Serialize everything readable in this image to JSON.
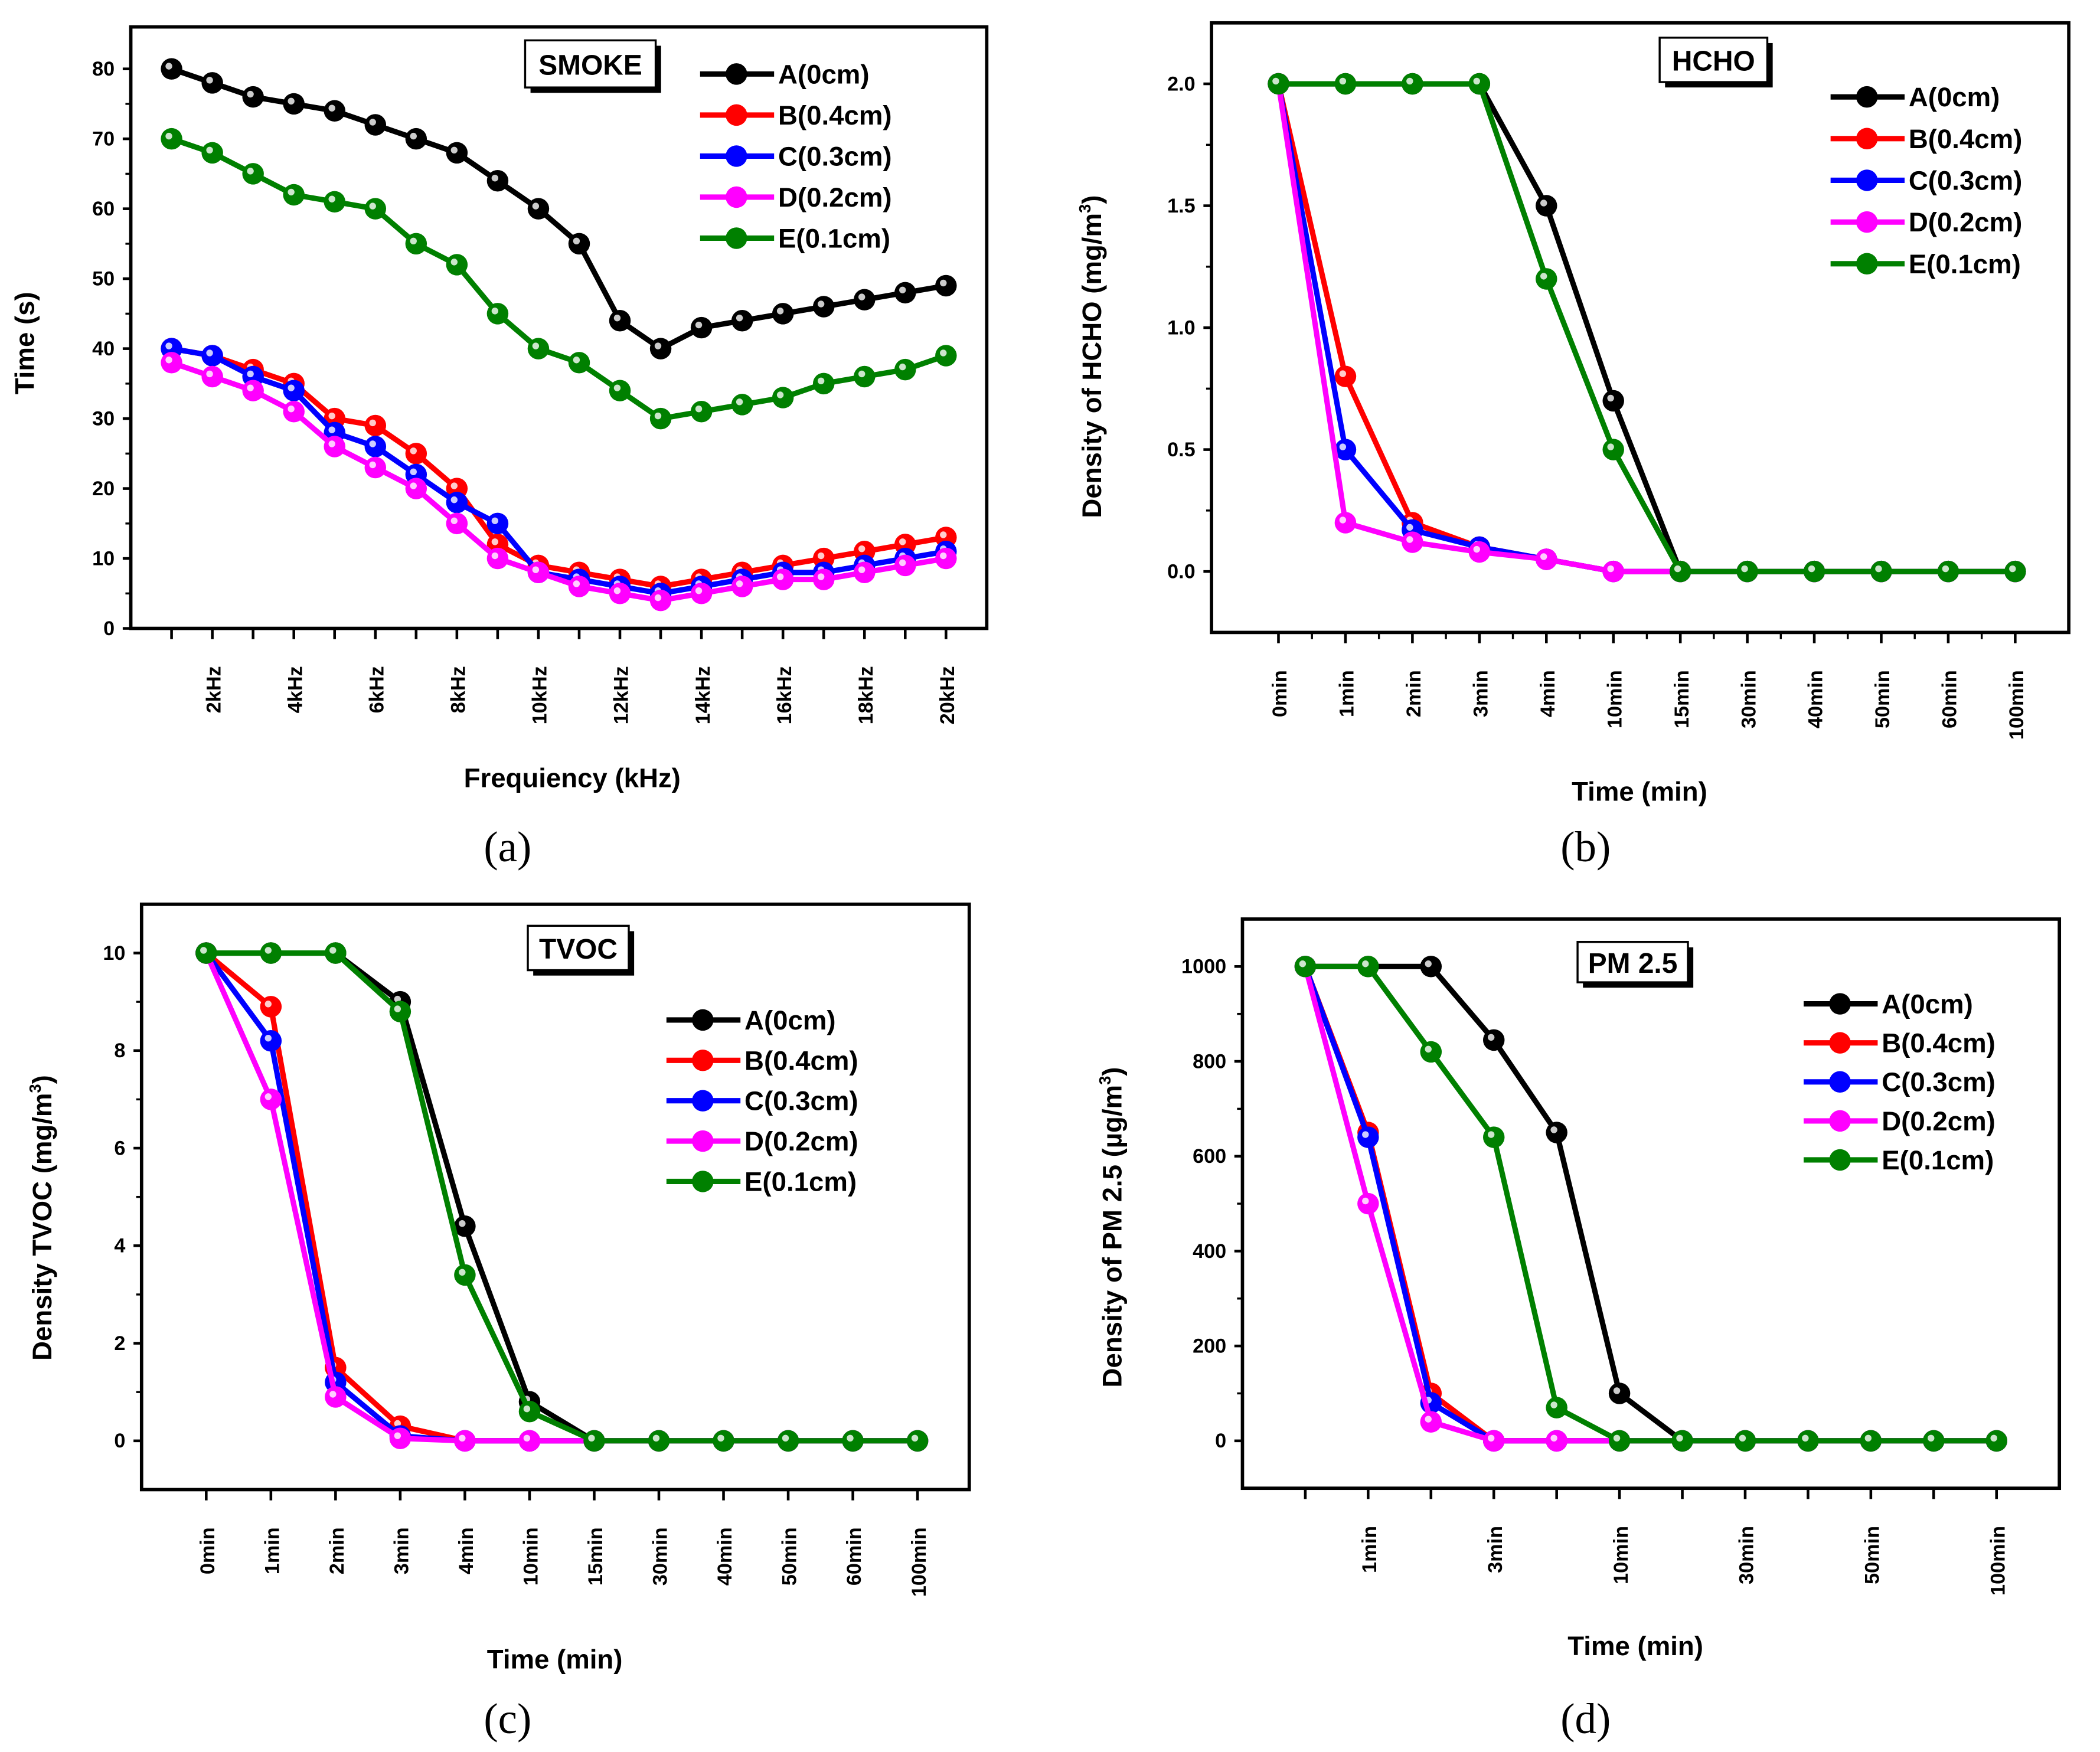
{
  "colors": {
    "A": "#000000",
    "B": "#ff0000",
    "C": "#0000ff",
    "D": "#ff00ff",
    "E": "#008000"
  },
  "chart_data": [
    {
      "panel": "(a)",
      "type": "line",
      "title": "SMOKE",
      "xlabel": "Frequiency (kHz)",
      "ylabel": "Time (s)",
      "ylabel_sup": "",
      "ylabel_end": "",
      "x": [
        1,
        2,
        3,
        4,
        5,
        6,
        7,
        8,
        9,
        10,
        11,
        12,
        13,
        14,
        15,
        16,
        17,
        18,
        19,
        20
      ],
      "xlim": [
        0,
        21
      ],
      "ylim": [
        0,
        86
      ],
      "xticks": [
        2,
        4,
        6,
        8,
        10,
        12,
        14,
        16,
        18,
        20
      ],
      "xtick_labels": [
        "2kHz",
        "4kHz",
        "6kHz",
        "8kHz",
        "10kHz",
        "12kHz",
        "14kHz",
        "16kHz",
        "18kHz",
        "20kHz"
      ],
      "yticks": [
        0,
        10,
        20,
        30,
        40,
        50,
        60,
        70,
        80
      ],
      "ytick_labels": [
        "0",
        "10",
        "20",
        "30",
        "40",
        "50",
        "60",
        "70",
        "80"
      ],
      "legend_position": "top-right",
      "series": [
        {
          "key": "A",
          "name": "A(0cm)",
          "values": [
            80,
            78,
            76,
            75,
            74,
            72,
            70,
            68,
            64,
            60,
            55,
            44,
            40,
            43,
            44,
            45,
            46,
            47,
            48,
            49
          ]
        },
        {
          "key": "B",
          "name": "B(0.4cm)",
          "values": [
            40,
            39,
            37,
            35,
            30,
            29,
            25,
            20,
            12,
            9,
            8,
            7,
            6,
            7,
            8,
            9,
            10,
            11,
            12,
            13
          ]
        },
        {
          "key": "C",
          "name": "C(0.3cm)",
          "values": [
            40,
            39,
            36,
            34,
            28,
            26,
            22,
            18,
            15,
            8,
            7,
            6,
            5,
            6,
            7,
            8,
            8,
            9,
            10,
            11
          ]
        },
        {
          "key": "D",
          "name": "D(0.2cm)",
          "values": [
            38,
            36,
            34,
            31,
            26,
            23,
            20,
            15,
            10,
            8,
            6,
            5,
            4,
            5,
            6,
            7,
            7,
            8,
            9,
            10
          ]
        },
        {
          "key": "E",
          "name": "E(0.1cm)",
          "values": [
            70,
            68,
            65,
            62,
            61,
            60,
            55,
            52,
            45,
            40,
            38,
            34,
            30,
            31,
            32,
            33,
            35,
            36,
            37,
            39
          ]
        }
      ]
    },
    {
      "panel": "(b)",
      "type": "line",
      "title": "HCHO",
      "xlabel": "Time (min)",
      "ylabel": "Density of HCHO (mg/m",
      "ylabel_sup": "3",
      "ylabel_end": ")",
      "x": [
        0,
        1,
        2,
        3,
        4,
        5,
        6,
        7,
        8,
        9,
        10,
        11
      ],
      "xlim": [
        -1,
        11.8
      ],
      "ylim": [
        -0.25,
        2.25
      ],
      "xticks": [
        0,
        1,
        2,
        3,
        4,
        5,
        6,
        7,
        8,
        9,
        10,
        11
      ],
      "xtick_labels": [
        "0min",
        "1min",
        "2min",
        "3min",
        "4min",
        "10min",
        "15min",
        "30min",
        "40min",
        "50min",
        "60min",
        "100min"
      ],
      "yticks": [
        0,
        0.5,
        1,
        1.5,
        2
      ],
      "ytick_labels": [
        "0.0",
        "0.5",
        "1.0",
        "1.5",
        "2.0"
      ],
      "legend_position": "top-right",
      "series": [
        {
          "key": "A",
          "name": "A(0cm)",
          "values": [
            2,
            2,
            2,
            2,
            1.5,
            0.7,
            0,
            0,
            0,
            0,
            0,
            0
          ]
        },
        {
          "key": "B",
          "name": "B(0.4cm)",
          "values": [
            2,
            0.8,
            0.2,
            0.1,
            0.05,
            0,
            0,
            0,
            0,
            0,
            0,
            0
          ]
        },
        {
          "key": "C",
          "name": "C(0.3cm)",
          "values": [
            2,
            0.5,
            0.17,
            0.1,
            0.05,
            0,
            0,
            0,
            0,
            0,
            0,
            0
          ]
        },
        {
          "key": "D",
          "name": "D(0.2cm)",
          "values": [
            2,
            0.2,
            0.12,
            0.08,
            0.05,
            0,
            0,
            0,
            0,
            0,
            0,
            0
          ]
        },
        {
          "key": "E",
          "name": "E(0.1cm)",
          "values": [
            2,
            2,
            2,
            2,
            1.2,
            0.5,
            0,
            0,
            0,
            0,
            0,
            0
          ]
        }
      ]
    },
    {
      "panel": "(c)",
      "type": "line",
      "title": "TVOC",
      "xlabel": "Time (min)",
      "ylabel": "Density TVOC (mg/m",
      "ylabel_sup": "3",
      "ylabel_end": ")",
      "x": [
        0,
        1,
        2,
        3,
        4,
        5,
        6,
        7,
        8,
        9,
        10,
        11
      ],
      "xlim": [
        -1,
        11.8
      ],
      "ylim": [
        -1,
        11
      ],
      "xticks": [
        0,
        1,
        2,
        3,
        4,
        5,
        6,
        7,
        8,
        9,
        10,
        11
      ],
      "xtick_labels": [
        "0min",
        "1min",
        "2min",
        "3min",
        "4min",
        "10min",
        "15min",
        "30min",
        "40min",
        "50min",
        "60min",
        "100min"
      ],
      "yticks": [
        0,
        2,
        4,
        6,
        8,
        10
      ],
      "ytick_labels": [
        "0",
        "2",
        "4",
        "6",
        "8",
        "10"
      ],
      "legend_position": "center-right",
      "series": [
        {
          "key": "A",
          "name": "A(0cm)",
          "values": [
            10,
            10,
            10,
            9,
            4.4,
            0.8,
            0,
            0,
            0,
            0,
            0,
            0
          ]
        },
        {
          "key": "B",
          "name": "B(0.4cm)",
          "values": [
            10,
            8.9,
            1.5,
            0.3,
            0,
            0,
            0,
            0,
            0,
            0,
            0,
            0
          ]
        },
        {
          "key": "C",
          "name": "C(0.3cm)",
          "values": [
            10,
            8.2,
            1.2,
            0.1,
            0,
            0,
            0,
            0,
            0,
            0,
            0,
            0
          ]
        },
        {
          "key": "D",
          "name": "D(0.2cm)",
          "values": [
            10,
            7,
            0.9,
            0.05,
            0,
            0,
            0,
            0,
            0,
            0,
            0,
            0
          ]
        },
        {
          "key": "E",
          "name": "E(0.1cm)",
          "values": [
            10,
            10,
            10,
            8.8,
            3.4,
            0.6,
            0,
            0,
            0,
            0,
            0,
            0
          ]
        }
      ]
    },
    {
      "panel": "(d)",
      "type": "line",
      "title": "PM 2.5",
      "xlabel": "Time (min)",
      "ylabel": "Density of PM 2.5 (µg/m",
      "ylabel_sup": "3",
      "ylabel_end": ")",
      "x": [
        0,
        1,
        2,
        3,
        4,
        5,
        6,
        7,
        8,
        9,
        10,
        11
      ],
      "xlim": [
        -1,
        12
      ],
      "ylim": [
        -100,
        1100
      ],
      "xticks": [
        1,
        3,
        5,
        7,
        9,
        11
      ],
      "xtick_labels": [
        "1min",
        "3min",
        "10min",
        "30min",
        "50min",
        "100min"
      ],
      "yticks": [
        0,
        200,
        400,
        600,
        800,
        1000
      ],
      "ytick_labels": [
        "0",
        "200",
        "400",
        "600",
        "800",
        "1000"
      ],
      "legend_position": "top-right",
      "series": [
        {
          "key": "A",
          "name": "A(0cm)",
          "values": [
            1000,
            1000,
            1000,
            845,
            650,
            100,
            0,
            0,
            0,
            0,
            0,
            0
          ]
        },
        {
          "key": "B",
          "name": "B(0.4cm)",
          "values": [
            1000,
            650,
            100,
            0,
            0,
            0,
            0,
            0,
            0,
            0,
            0,
            0
          ]
        },
        {
          "key": "C",
          "name": "C(0.3cm)",
          "values": [
            1000,
            640,
            80,
            0,
            0,
            0,
            0,
            0,
            0,
            0,
            0,
            0
          ]
        },
        {
          "key": "D",
          "name": "D(0.2cm)",
          "values": [
            1000,
            500,
            40,
            0,
            0,
            0,
            0,
            0,
            0,
            0,
            0,
            0
          ]
        },
        {
          "key": "E",
          "name": "E(0.1cm)",
          "values": [
            1000,
            1000,
            820,
            640,
            70,
            0,
            0,
            0,
            0,
            0,
            0,
            0
          ]
        }
      ]
    }
  ]
}
